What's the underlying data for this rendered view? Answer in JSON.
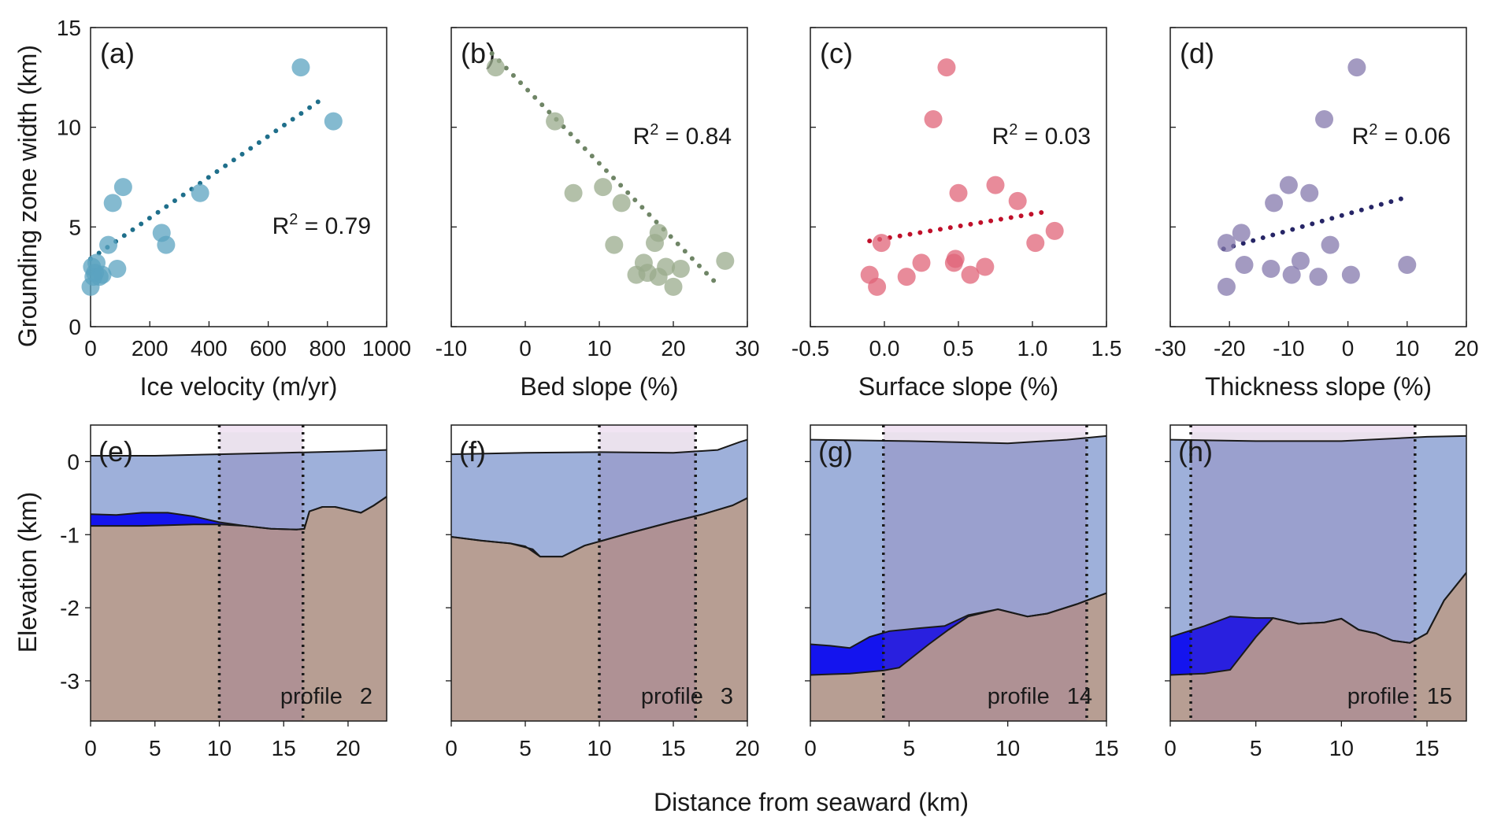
{
  "figure": {
    "ylabel_top": "Grounding zone width (km)",
    "ylabel_bottom": "Elevation (km)",
    "xlabel_bottom": "Distance from seaward (km)"
  },
  "chart_data": [
    {
      "type": "scatter",
      "panel": "(a)",
      "xlabel": "Ice velocity (m/yr)",
      "ylabel": "Grounding zone width (km)",
      "xlim": [
        0,
        1000
      ],
      "ylim": [
        0,
        15
      ],
      "xticks": [
        0,
        200,
        400,
        600,
        800,
        1000
      ],
      "yticks": [
        0,
        5,
        10,
        15
      ],
      "r2_label": "R",
      "r2_value": " = 0.79",
      "r2_sup": "2",
      "color": "#5ba3c0",
      "trend_color": "#1f6f8b",
      "points": [
        [
          0,
          2
        ],
        [
          5,
          3
        ],
        [
          10,
          2.5
        ],
        [
          15,
          2.7
        ],
        [
          20,
          3.2
        ],
        [
          30,
          2.5
        ],
        [
          40,
          2.6
        ],
        [
          60,
          4.1
        ],
        [
          75,
          6.2
        ],
        [
          90,
          2.9
        ],
        [
          110,
          7
        ],
        [
          240,
          4.7
        ],
        [
          255,
          4.1
        ],
        [
          370,
          6.7
        ],
        [
          710,
          13
        ],
        [
          820,
          10.3
        ]
      ],
      "trend": [
        [
          0,
          3.4
        ],
        [
          790,
          11.5
        ]
      ]
    },
    {
      "type": "scatter",
      "panel": "(b)",
      "xlabel": "Bed slope (%)",
      "ylabel": "",
      "xlim": [
        -10,
        30
      ],
      "ylim": [
        0,
        15
      ],
      "xticks": [
        -10,
        0,
        10,
        20,
        30
      ],
      "yticks": [
        0,
        5,
        10,
        15
      ],
      "r2_label": "R",
      "r2_value": " = 0.84",
      "r2_sup": "2",
      "color": "#9aab8c",
      "trend_color": "#6f8566",
      "points": [
        [
          -4,
          13
        ],
        [
          4,
          10.3
        ],
        [
          6.5,
          6.7
        ],
        [
          10.5,
          7
        ],
        [
          12,
          4.1
        ],
        [
          13,
          6.2
        ],
        [
          15,
          2.6
        ],
        [
          16,
          3.2
        ],
        [
          16.5,
          2.7
        ],
        [
          17.5,
          4.2
        ],
        [
          18,
          2.5
        ],
        [
          18,
          4.7
        ],
        [
          19,
          3
        ],
        [
          20,
          2
        ],
        [
          21,
          2.9
        ],
        [
          27,
          3.3
        ]
      ],
      "trend": [
        [
          -4.5,
          13.7
        ],
        [
          26,
          2.1
        ]
      ]
    },
    {
      "type": "scatter",
      "panel": "(c)",
      "xlabel": "Surface slope (%)",
      "ylabel": "",
      "xlim": [
        -0.5,
        1.5
      ],
      "ylim": [
        0,
        15
      ],
      "xticks": [
        -0.5,
        0.0,
        0.5,
        1.0,
        1.5
      ],
      "yticks": [
        0,
        5,
        10,
        15
      ],
      "tick_labels": [
        "-0.5",
        "0.0",
        "0.5",
        "1.0",
        "1.5"
      ],
      "r2_label": "R",
      "r2_value": " = 0.03",
      "r2_sup": "2",
      "color": "#e06478",
      "trend_color": "#c0102a",
      "points": [
        [
          -0.1,
          2.6
        ],
        [
          -0.05,
          2
        ],
        [
          -0.02,
          4.2
        ],
        [
          0.15,
          2.5
        ],
        [
          0.25,
          3.2
        ],
        [
          0.33,
          10.4
        ],
        [
          0.42,
          13
        ],
        [
          0.47,
          3.2
        ],
        [
          0.48,
          3.4
        ],
        [
          0.5,
          6.7
        ],
        [
          0.58,
          2.6
        ],
        [
          0.68,
          3
        ],
        [
          0.75,
          7.1
        ],
        [
          0.9,
          6.3
        ],
        [
          1.02,
          4.2
        ],
        [
          1.15,
          4.8
        ]
      ],
      "trend": [
        [
          -0.1,
          4.3
        ],
        [
          1.12,
          5.8
        ]
      ]
    },
    {
      "type": "scatter",
      "panel": "(d)",
      "xlabel": "Thickness slope (%)",
      "ylabel": "",
      "xlim": [
        -30,
        20
      ],
      "ylim": [
        0,
        15
      ],
      "xticks": [
        -30,
        -20,
        -10,
        0,
        10,
        20
      ],
      "yticks": [
        0,
        5,
        10,
        15
      ],
      "r2_label": "R",
      "r2_value": " = 0.06",
      "r2_sup": "2",
      "color": "#8478ac",
      "trend_color": "#262566",
      "points": [
        [
          -20.5,
          2
        ],
        [
          -20.5,
          4.2
        ],
        [
          -18,
          4.7
        ],
        [
          -17.5,
          3.1
        ],
        [
          -13,
          2.9
        ],
        [
          -12.5,
          6.2
        ],
        [
          -10,
          7.1
        ],
        [
          -9.5,
          2.6
        ],
        [
          -8,
          3.3
        ],
        [
          -6.5,
          6.7
        ],
        [
          -5,
          2.5
        ],
        [
          -4,
          10.4
        ],
        [
          -3,
          4.1
        ],
        [
          0.5,
          2.6
        ],
        [
          1.5,
          13
        ],
        [
          10,
          3.1
        ]
      ],
      "trend": [
        [
          -21,
          3.9
        ],
        [
          10,
          6.5
        ]
      ]
    },
    {
      "type": "area",
      "panel": "(e)",
      "profile_label": "profile",
      "profile_num": "2",
      "xlim": [
        0,
        23
      ],
      "ylim": [
        -3.55,
        0.5
      ],
      "xticks": [
        0,
        5,
        10,
        15,
        20
      ],
      "yticks": [
        0,
        -1,
        -2,
        -3
      ],
      "ytick_labels": [
        "0",
        "-1",
        "-2",
        "-3"
      ],
      "gz": [
        10,
        16.5
      ],
      "surface": [
        [
          0,
          0.08
        ],
        [
          5,
          0.08
        ],
        [
          10,
          0.1
        ],
        [
          15,
          0.12
        ],
        [
          20,
          0.14
        ],
        [
          23,
          0.16
        ]
      ],
      "base": [
        [
          0,
          -0.72
        ],
        [
          2,
          -0.73
        ],
        [
          4,
          -0.7
        ],
        [
          6,
          -0.7
        ],
        [
          8,
          -0.75
        ],
        [
          10,
          -0.83
        ],
        [
          12,
          -0.88
        ],
        [
          14,
          -0.92
        ],
        [
          16,
          -0.93
        ],
        [
          16.6,
          -0.92
        ],
        [
          17,
          -0.68
        ],
        [
          18,
          -0.62
        ],
        [
          19,
          -0.62
        ],
        [
          20,
          -0.66
        ],
        [
          21,
          -0.7
        ],
        [
          22,
          -0.6
        ],
        [
          23,
          -0.48
        ]
      ],
      "bed": [
        [
          0,
          -0.88
        ],
        [
          2,
          -0.88
        ],
        [
          4,
          -0.88
        ],
        [
          6,
          -0.87
        ],
        [
          8,
          -0.86
        ],
        [
          10,
          -0.86
        ],
        [
          12,
          -0.88
        ],
        [
          14,
          -0.92
        ],
        [
          16,
          -0.93
        ],
        [
          16.6,
          -0.92
        ],
        [
          17,
          -0.68
        ],
        [
          18,
          -0.62
        ],
        [
          19,
          -0.62
        ],
        [
          20,
          -0.66
        ],
        [
          21,
          -0.7
        ],
        [
          22,
          -0.6
        ],
        [
          23,
          -0.48
        ]
      ]
    },
    {
      "type": "area",
      "panel": "(f)",
      "profile_label": "profile",
      "profile_num": "3",
      "xlim": [
        0,
        20
      ],
      "ylim": [
        -3.55,
        0.5
      ],
      "xticks": [
        0,
        5,
        10,
        15,
        20
      ],
      "yticks": [
        0,
        -1,
        -2,
        -3
      ],
      "ytick_labels": [
        "0",
        "-1",
        "-2",
        "-3"
      ],
      "gz": [
        10,
        16.5
      ],
      "surface": [
        [
          0,
          0.1
        ],
        [
          5,
          0.12
        ],
        [
          10,
          0.13
        ],
        [
          15,
          0.12
        ],
        [
          18,
          0.16
        ],
        [
          19.5,
          0.27
        ],
        [
          20,
          0.3
        ]
      ],
      "base": [
        [
          0,
          -1.03
        ],
        [
          2,
          -1.08
        ],
        [
          4,
          -1.12
        ],
        [
          5.5,
          -1.2
        ],
        [
          6,
          -1.3
        ],
        [
          7.5,
          -1.3
        ],
        [
          9,
          -1.15
        ],
        [
          12,
          -0.98
        ],
        [
          15,
          -0.82
        ],
        [
          17,
          -0.72
        ],
        [
          19,
          -0.6
        ],
        [
          20,
          -0.5
        ]
      ],
      "bed": [
        [
          0,
          -1.03
        ],
        [
          2,
          -1.08
        ],
        [
          4,
          -1.12
        ],
        [
          5,
          -1.16
        ],
        [
          6,
          -1.3
        ],
        [
          7.5,
          -1.3
        ],
        [
          9,
          -1.15
        ],
        [
          12,
          -0.98
        ],
        [
          15,
          -0.82
        ],
        [
          17,
          -0.72
        ],
        [
          19,
          -0.6
        ],
        [
          20,
          -0.5
        ]
      ]
    },
    {
      "type": "area",
      "panel": "(g)",
      "profile_label": "profile",
      "profile_num": "14",
      "xlim": [
        0,
        15
      ],
      "ylim": [
        -3.55,
        0.5
      ],
      "xticks": [
        0,
        5,
        10,
        15
      ],
      "yticks": [
        0,
        -1,
        -2,
        -3
      ],
      "ytick_labels": [
        "0",
        "-1",
        "-2",
        "-3"
      ],
      "gz": [
        3.7,
        14
      ],
      "surface": [
        [
          0,
          0.3
        ],
        [
          5,
          0.28
        ],
        [
          10,
          0.25
        ],
        [
          13,
          0.3
        ],
        [
          15,
          0.35
        ]
      ],
      "base": [
        [
          0,
          -2.5
        ],
        [
          1,
          -2.52
        ],
        [
          2,
          -2.55
        ],
        [
          3,
          -2.4
        ],
        [
          4,
          -2.32
        ],
        [
          5.5,
          -2.28
        ],
        [
          6.8,
          -2.25
        ],
        [
          8,
          -2.1
        ],
        [
          9.5,
          -2.02
        ],
        [
          11,
          -2.12
        ],
        [
          12,
          -2.08
        ],
        [
          13.5,
          -1.95
        ],
        [
          15,
          -1.8
        ]
      ],
      "bed": [
        [
          0,
          -2.92
        ],
        [
          2,
          -2.9
        ],
        [
          3.7,
          -2.86
        ],
        [
          4.5,
          -2.82
        ],
        [
          6,
          -2.5
        ],
        [
          7,
          -2.3
        ],
        [
          8,
          -2.12
        ],
        [
          9.5,
          -2.02
        ],
        [
          11,
          -2.12
        ],
        [
          12,
          -2.08
        ],
        [
          13.5,
          -1.95
        ],
        [
          15,
          -1.8
        ]
      ]
    },
    {
      "type": "area",
      "panel": "(h)",
      "profile_label": "profile",
      "profile_num": "15",
      "xlim": [
        0,
        17.3
      ],
      "ylim": [
        -3.55,
        0.5
      ],
      "xticks": [
        0,
        5,
        10,
        15
      ],
      "yticks": [
        0,
        -1,
        -2,
        -3
      ],
      "ytick_labels": [
        "0",
        "-1",
        "-2",
        "-3"
      ],
      "gz": [
        1.2,
        14.3
      ],
      "surface": [
        [
          0,
          0.3
        ],
        [
          5,
          0.28
        ],
        [
          10,
          0.28
        ],
        [
          15,
          0.34
        ],
        [
          17.3,
          0.35
        ]
      ],
      "base": [
        [
          0,
          -2.4
        ],
        [
          2,
          -2.25
        ],
        [
          3.5,
          -2.12
        ],
        [
          5,
          -2.14
        ],
        [
          6,
          -2.14
        ],
        [
          7.5,
          -2.22
        ],
        [
          9,
          -2.2
        ],
        [
          10,
          -2.15
        ],
        [
          11,
          -2.3
        ],
        [
          12,
          -2.35
        ],
        [
          13,
          -2.45
        ],
        [
          14,
          -2.48
        ],
        [
          15,
          -2.35
        ],
        [
          16,
          -1.9
        ],
        [
          17.3,
          -1.52
        ]
      ],
      "bed": [
        [
          0,
          -2.92
        ],
        [
          2,
          -2.9
        ],
        [
          3.5,
          -2.85
        ],
        [
          5,
          -2.4
        ],
        [
          6,
          -2.14
        ],
        [
          7.5,
          -2.22
        ],
        [
          9,
          -2.2
        ],
        [
          10,
          -2.15
        ],
        [
          11,
          -2.3
        ],
        [
          12,
          -2.35
        ],
        [
          13,
          -2.45
        ],
        [
          14,
          -2.48
        ],
        [
          15,
          -2.35
        ],
        [
          16,
          -1.9
        ],
        [
          17.3,
          -1.52
        ]
      ]
    }
  ]
}
